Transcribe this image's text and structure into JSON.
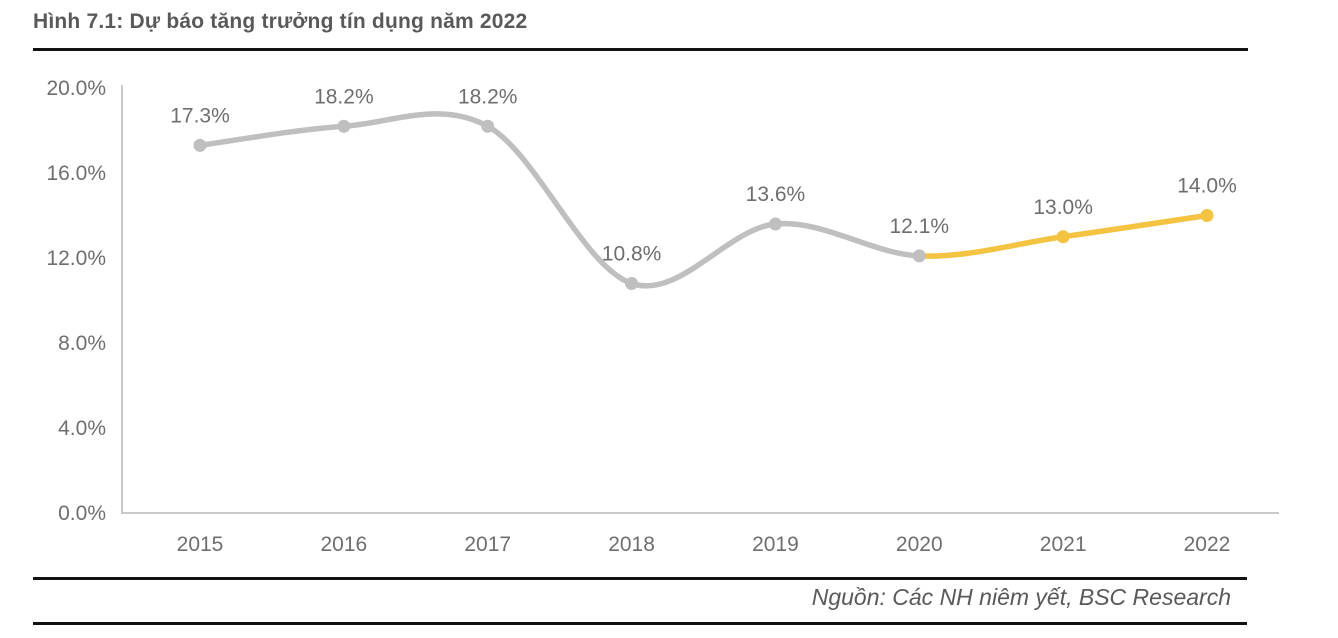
{
  "title": "Hình 7.1: Dự báo tăng trưởng tín dụng năm 2022",
  "source": "Nguồn: Các NH niêm yết, BSC Research",
  "colors": {
    "actual_line": "#BFBFBF",
    "forecast_line": "#F5C342",
    "axis": "#C9C9C9",
    "label_text": "#6E6E6E",
    "title_text": "#595959",
    "divider": "#121212"
  },
  "chart_data": {
    "type": "line",
    "title": "Hình 7.1: Dự báo tăng trưởng tín dụng năm 2022",
    "categories": [
      "2015",
      "2016",
      "2017",
      "2018",
      "2019",
      "2020",
      "2021",
      "2022"
    ],
    "values": [
      17.3,
      18.2,
      18.2,
      10.8,
      13.6,
      12.1,
      13.0,
      14.0
    ],
    "value_labels": [
      "17.3%",
      "18.2%",
      "18.2%",
      "10.8%",
      "13.6%",
      "12.1%",
      "13.0%",
      "14.0%"
    ],
    "forecast_start_index": 5,
    "xlabel": "",
    "ylabel": "",
    "ylim": [
      0,
      20
    ],
    "yticks": [
      0,
      4,
      8,
      12,
      16,
      20
    ],
    "ytick_labels": [
      "0.0%",
      "4.0%",
      "8.0%",
      "12.0%",
      "16.0%",
      "20.0%"
    ],
    "grid": false,
    "legend": false,
    "smooth": true,
    "data_labels": true,
    "source": "Nguồn: Các NH niêm yết, BSC Research"
  }
}
